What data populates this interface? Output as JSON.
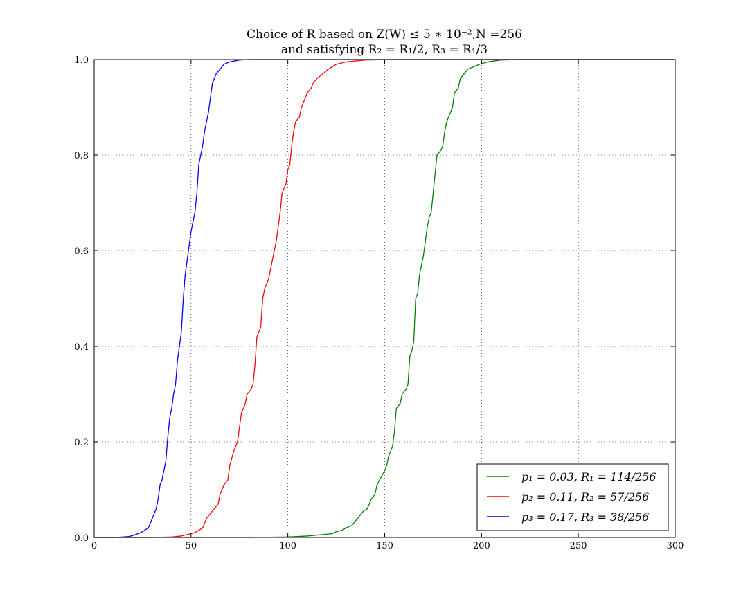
{
  "chart_data": {
    "type": "line",
    "title": "Choice of R based on Z(W) ≤ 5 ∗ 10⁻²,N =256",
    "subtitle": "and satisfying R₂ = R₁/2, R₃ = R₁/3",
    "xlabel": "",
    "ylabel": "",
    "xlim": [
      0,
      300
    ],
    "ylim": [
      0,
      1.0
    ],
    "x_ticks": [
      0,
      50,
      100,
      150,
      200,
      250,
      300
    ],
    "y_ticks": [
      0.0,
      0.2,
      0.4,
      0.6,
      0.8,
      1.0
    ],
    "x_tick_labels": [
      "0",
      "50",
      "100",
      "150",
      "200",
      "250",
      "300"
    ],
    "y_tick_labels": [
      "0.0",
      "0.2",
      "0.4",
      "0.6",
      "0.8",
      "1.0"
    ],
    "grid": true,
    "legend_position": "bottom-right",
    "series": [
      {
        "name": "p₁ = 0.03, R₁ = 114/256",
        "color": "#008000",
        "points": [
          [
            0,
            0
          ],
          [
            80,
            0
          ],
          [
            100,
            0.001
          ],
          [
            110,
            0.003
          ],
          [
            118,
            0.006
          ],
          [
            123,
            0.008
          ],
          [
            125,
            0.012
          ],
          [
            128,
            0.015
          ],
          [
            130,
            0.02
          ],
          [
            133,
            0.025
          ],
          [
            135,
            0.035
          ],
          [
            137,
            0.045
          ],
          [
            139,
            0.055
          ],
          [
            141,
            0.06
          ],
          [
            143,
            0.08
          ],
          [
            145,
            0.09
          ],
          [
            146,
            0.11
          ],
          [
            148,
            0.125
          ],
          [
            150,
            0.14
          ],
          [
            151,
            0.15
          ],
          [
            152,
            0.17
          ],
          [
            154,
            0.19
          ],
          [
            155,
            0.22
          ],
          [
            156,
            0.27
          ],
          [
            158,
            0.28
          ],
          [
            159,
            0.3
          ],
          [
            161,
            0.31
          ],
          [
            162,
            0.32
          ],
          [
            163,
            0.38
          ],
          [
            164,
            0.39
          ],
          [
            165,
            0.41
          ],
          [
            166,
            0.5
          ],
          [
            167,
            0.51
          ],
          [
            168,
            0.55
          ],
          [
            169,
            0.57
          ],
          [
            170,
            0.59
          ],
          [
            171,
            0.62
          ],
          [
            172,
            0.65
          ],
          [
            173,
            0.67
          ],
          [
            174,
            0.68
          ],
          [
            175,
            0.72
          ],
          [
            176,
            0.76
          ],
          [
            177,
            0.8
          ],
          [
            179,
            0.81
          ],
          [
            180,
            0.82
          ],
          [
            181,
            0.85
          ],
          [
            182,
            0.87
          ],
          [
            183,
            0.88
          ],
          [
            185,
            0.9
          ],
          [
            186,
            0.93
          ],
          [
            188,
            0.94
          ],
          [
            189,
            0.96
          ],
          [
            191,
            0.97
          ],
          [
            193,
            0.98
          ],
          [
            196,
            0.985
          ],
          [
            199,
            0.99
          ],
          [
            203,
            0.995
          ],
          [
            210,
            0.999
          ],
          [
            220,
            1.0
          ],
          [
            300,
            1.0
          ]
        ]
      },
      {
        "name": "p₂ = 0.11, R₂ = 57/256",
        "color": "#ff0000",
        "points": [
          [
            0,
            0
          ],
          [
            30,
            0
          ],
          [
            40,
            0.001
          ],
          [
            45,
            0.003
          ],
          [
            48,
            0.006
          ],
          [
            50,
            0.008
          ],
          [
            52,
            0.01
          ],
          [
            54,
            0.015
          ],
          [
            56,
            0.02
          ],
          [
            57,
            0.03
          ],
          [
            58,
            0.04
          ],
          [
            60,
            0.05
          ],
          [
            62,
            0.06
          ],
          [
            64,
            0.07
          ],
          [
            65,
            0.09
          ],
          [
            66,
            0.1
          ],
          [
            67,
            0.11
          ],
          [
            69,
            0.12
          ],
          [
            70,
            0.15
          ],
          [
            72,
            0.18
          ],
          [
            73,
            0.19
          ],
          [
            74,
            0.2
          ],
          [
            75,
            0.23
          ],
          [
            76,
            0.26
          ],
          [
            78,
            0.28
          ],
          [
            79,
            0.3
          ],
          [
            81,
            0.31
          ],
          [
            82,
            0.32
          ],
          [
            83,
            0.36
          ],
          [
            84,
            0.42
          ],
          [
            85,
            0.43
          ],
          [
            86,
            0.44
          ],
          [
            87,
            0.5
          ],
          [
            88,
            0.52
          ],
          [
            90,
            0.54
          ],
          [
            91,
            0.56
          ],
          [
            92,
            0.58
          ],
          [
            93,
            0.6
          ],
          [
            94,
            0.62
          ],
          [
            95,
            0.65
          ],
          [
            96,
            0.68
          ],
          [
            97,
            0.72
          ],
          [
            99,
            0.74
          ],
          [
            100,
            0.77
          ],
          [
            101,
            0.78
          ],
          [
            102,
            0.82
          ],
          [
            103,
            0.85
          ],
          [
            104,
            0.87
          ],
          [
            106,
            0.88
          ],
          [
            107,
            0.9
          ],
          [
            108,
            0.91
          ],
          [
            110,
            0.93
          ],
          [
            112,
            0.94
          ],
          [
            113,
            0.95
          ],
          [
            115,
            0.96
          ],
          [
            118,
            0.97
          ],
          [
            121,
            0.98
          ],
          [
            125,
            0.99
          ],
          [
            130,
            0.995
          ],
          [
            140,
            0.999
          ],
          [
            155,
            1.0
          ],
          [
            300,
            1.0
          ]
        ]
      },
      {
        "name": "p₃ = 0.17, R₃ = 38/256",
        "color": "#0000ff",
        "points": [
          [
            0,
            0
          ],
          [
            10,
            0
          ],
          [
            15,
            0.001
          ],
          [
            18,
            0.002
          ],
          [
            20,
            0.004
          ],
          [
            22,
            0.007
          ],
          [
            24,
            0.01
          ],
          [
            26,
            0.015
          ],
          [
            28,
            0.02
          ],
          [
            29,
            0.03
          ],
          [
            30,
            0.04
          ],
          [
            31,
            0.05
          ],
          [
            32,
            0.06
          ],
          [
            33,
            0.08
          ],
          [
            34,
            0.11
          ],
          [
            35,
            0.12
          ],
          [
            36,
            0.14
          ],
          [
            37,
            0.16
          ],
          [
            38,
            0.21
          ],
          [
            39,
            0.25
          ],
          [
            40,
            0.27
          ],
          [
            41,
            0.3
          ],
          [
            42,
            0.32
          ],
          [
            43,
            0.37
          ],
          [
            44,
            0.4
          ],
          [
            45,
            0.43
          ],
          [
            46,
            0.5
          ],
          [
            47,
            0.55
          ],
          [
            48,
            0.58
          ],
          [
            49,
            0.61
          ],
          [
            50,
            0.64
          ],
          [
            51,
            0.66
          ],
          [
            52,
            0.68
          ],
          [
            53,
            0.72
          ],
          [
            54,
            0.78
          ],
          [
            55,
            0.8
          ],
          [
            56,
            0.82
          ],
          [
            57,
            0.85
          ],
          [
            58,
            0.87
          ],
          [
            59,
            0.89
          ],
          [
            60,
            0.92
          ],
          [
            61,
            0.95
          ],
          [
            62,
            0.96
          ],
          [
            63,
            0.97
          ],
          [
            65,
            0.98
          ],
          [
            67,
            0.99
          ],
          [
            70,
            0.995
          ],
          [
            75,
            0.999
          ],
          [
            80,
            1.0
          ],
          [
            300,
            1.0
          ]
        ]
      }
    ]
  }
}
